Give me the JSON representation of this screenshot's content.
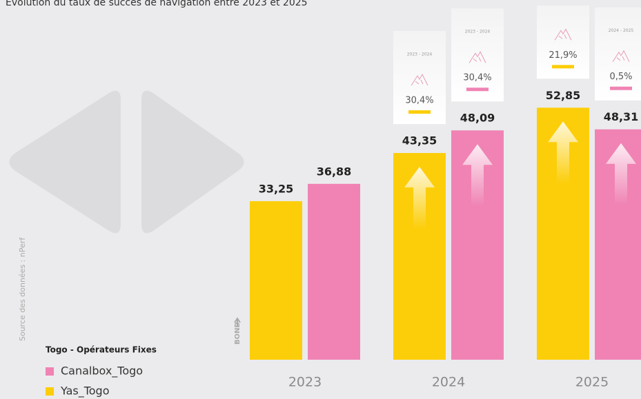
{
  "chart_data": {
    "type": "bar",
    "title": "Evolution du taux de succès de navigation entre 2023 et 2025",
    "source": "Source des données : nPerf",
    "legend_title": "Togo - Opérateurs Fixes",
    "axis_label": "BOND",
    "categories": [
      "2023",
      "2024",
      "2025"
    ],
    "series": [
      {
        "name": "Yas_Togo",
        "color": "#fcce0a",
        "values": [
          33.25,
          43.35,
          52.85
        ],
        "value_labels": [
          "33,25",
          "43,35",
          "52,85"
        ],
        "growth": [
          null,
          {
            "period": "2023 - 2024",
            "value": 30.4,
            "label": "30,4%"
          },
          {
            "value": 21.9,
            "label": "21,9%"
          }
        ]
      },
      {
        "name": "Canalbox_Togo",
        "color": "#f083b4",
        "values": [
          36.88,
          48.09,
          48.31
        ],
        "value_labels": [
          "36,88",
          "48,09",
          "48,31"
        ],
        "growth": [
          null,
          {
            "period": "2023 - 2024",
            "value": 30.4,
            "label": "30,4%"
          },
          {
            "period": "2024 - 2025",
            "value": 0.5,
            "label": "0,5%"
          }
        ]
      }
    ]
  }
}
